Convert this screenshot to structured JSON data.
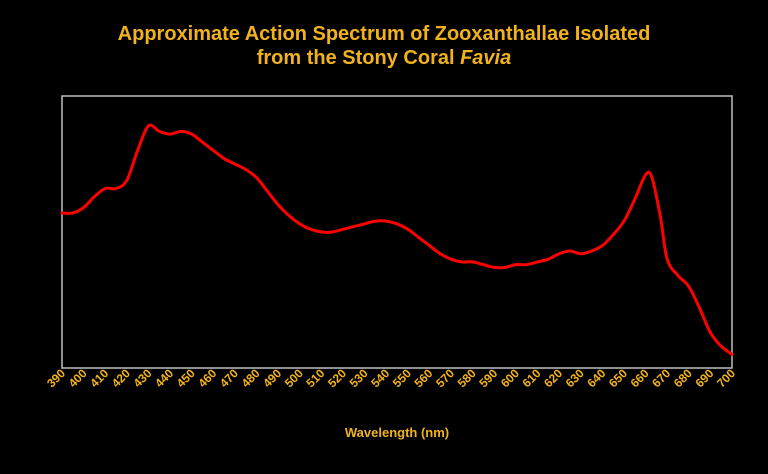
{
  "title": {
    "line1": "Approximate Action Spectrum of Zooxanthallae Isolated",
    "line2_prefix": "from the Stony Coral ",
    "line2_italic": "Favia"
  },
  "colors": {
    "background": "#000000",
    "text": "#f2b21c",
    "series": "#ff0000",
    "plot_border": "#bfbfbf"
  },
  "chart_data": {
    "type": "line",
    "title": "Approximate Action Spectrum of Zooxanthallae Isolated from the Stony Coral Favia",
    "xlabel": "Wavelength (nm)",
    "ylabel": "",
    "xlim": [
      390,
      700
    ],
    "ylim": [
      0,
      1
    ],
    "x_ticks": [
      390,
      400,
      410,
      420,
      430,
      440,
      450,
      460,
      470,
      480,
      490,
      500,
      510,
      520,
      530,
      540,
      550,
      560,
      570,
      580,
      590,
      600,
      610,
      620,
      630,
      640,
      650,
      660,
      670,
      680,
      690,
      700
    ],
    "y_ticks_shown": false,
    "grid": false,
    "legend": "none",
    "series": [
      {
        "color": "#ff0000",
        "x": [
          390,
          395,
          400,
          405,
          410,
          415,
          420,
          425,
          430,
          435,
          440,
          445,
          450,
          455,
          460,
          465,
          470,
          475,
          480,
          485,
          490,
          495,
          500,
          505,
          510,
          515,
          520,
          525,
          530,
          535,
          540,
          545,
          550,
          555,
          560,
          565,
          570,
          575,
          580,
          585,
          590,
          595,
          600,
          605,
          610,
          615,
          620,
          625,
          630,
          635,
          640,
          645,
          650,
          655,
          660,
          663,
          667,
          670,
          675,
          680,
          685,
          690,
          695,
          700
        ],
        "y": [
          0.57,
          0.57,
          0.59,
          0.63,
          0.66,
          0.66,
          0.69,
          0.8,
          0.89,
          0.87,
          0.86,
          0.87,
          0.86,
          0.83,
          0.8,
          0.77,
          0.75,
          0.73,
          0.7,
          0.65,
          0.6,
          0.56,
          0.53,
          0.51,
          0.5,
          0.5,
          0.51,
          0.52,
          0.53,
          0.54,
          0.54,
          0.53,
          0.51,
          0.48,
          0.45,
          0.42,
          0.4,
          0.39,
          0.39,
          0.38,
          0.37,
          0.37,
          0.38,
          0.38,
          0.39,
          0.4,
          0.42,
          0.43,
          0.42,
          0.43,
          0.45,
          0.49,
          0.54,
          0.62,
          0.71,
          0.7,
          0.55,
          0.4,
          0.34,
          0.3,
          0.22,
          0.13,
          0.08,
          0.05
        ]
      }
    ]
  }
}
